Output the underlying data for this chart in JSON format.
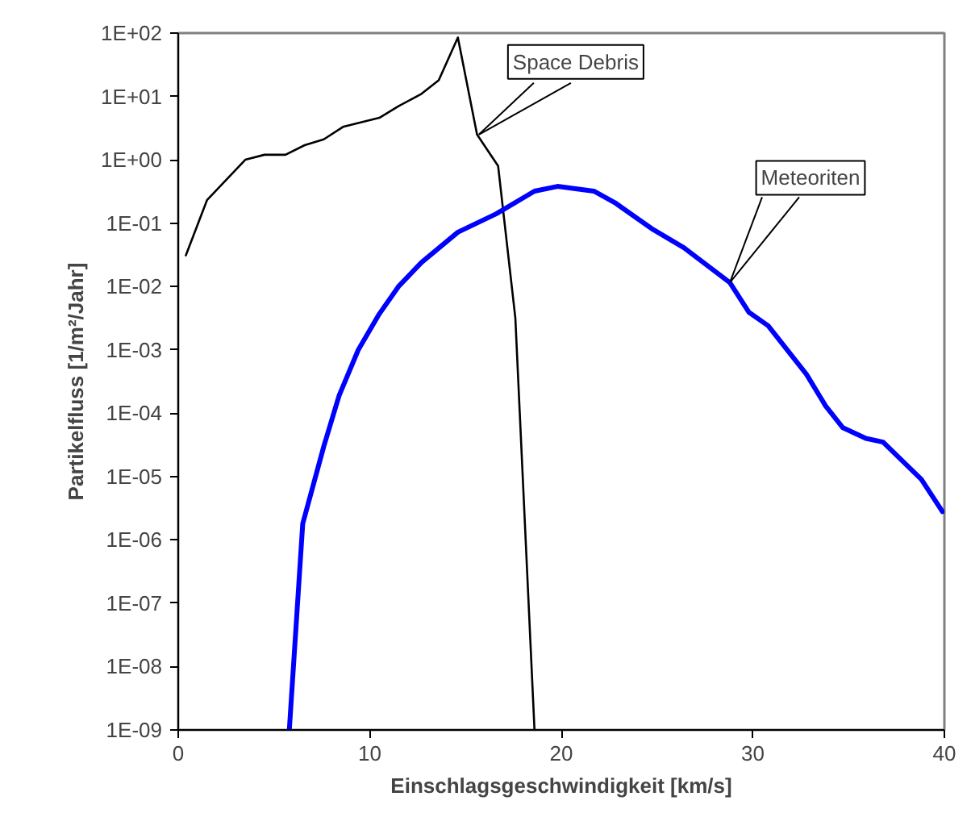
{
  "chart_data": {
    "type": "line",
    "xlabel": "Einschlagsgeschwindigkeit [km/s]",
    "ylabel": "Partikelfluss [1/m²/Jahr]",
    "log": "y",
    "xlim": [
      0,
      40
    ],
    "ylim": [
      1e-09,
      100
    ],
    "xticks": [
      0,
      10,
      20,
      30,
      40
    ],
    "yticks": [
      {
        "value": 100,
        "label": "1E+02"
      },
      {
        "value": 10,
        "label": "1E+01"
      },
      {
        "value": 1,
        "label": "1E+00"
      },
      {
        "value": 0.1,
        "label": "1E-01"
      },
      {
        "value": 0.01,
        "label": "1E-02"
      },
      {
        "value": 0.001,
        "label": "1E-03"
      },
      {
        "value": 0.0001,
        "label": "1E-04"
      },
      {
        "value": 1e-05,
        "label": "1E-05"
      },
      {
        "value": 1e-06,
        "label": "1E-06"
      },
      {
        "value": 1e-07,
        "label": "1E-07"
      },
      {
        "value": 1e-08,
        "label": "1E-08"
      },
      {
        "value": 1e-09,
        "label": "1E-09"
      }
    ],
    "grid": false,
    "line_style": "solid",
    "series": [
      {
        "color": "#000000",
        "x": [
          0.4,
          1.5,
          3.5,
          4.5,
          5.6,
          6.6,
          7.6,
          8.6,
          10.5,
          11.5,
          12.7,
          13.6,
          14.6,
          15.6,
          16.7,
          17.6,
          18.6
        ],
        "values": [
          0.031,
          0.23,
          1.0,
          1.2,
          1.2,
          1.7,
          2.1,
          3.3,
          4.6,
          7,
          11,
          18,
          85,
          2.5,
          0.8,
          0.0032,
          1e-09
        ]
      },
      {
        "color": "#0000ff",
        "x": [
          5.8,
          6.5,
          7.6,
          8.4,
          9.4,
          10.5,
          11.5,
          12.7,
          14.6,
          16.6,
          18.6,
          19.8,
          21.7,
          22.8,
          24.8,
          26.4,
          28.8,
          29.8,
          30.8,
          32.8,
          33.8,
          34.7,
          35.9,
          36.8,
          38.8,
          39.9
        ],
        "values": [
          1e-09,
          1.8e-06,
          3e-05,
          0.00019,
          0.001,
          0.0037,
          0.01,
          0.024,
          0.072,
          0.14,
          0.32,
          0.38,
          0.32,
          0.21,
          0.079,
          0.041,
          0.0115,
          0.0039,
          0.0024,
          0.00041,
          0.00013,
          5.9e-05,
          4e-05,
          3.5e-05,
          9e-06,
          2.8e-06
        ]
      }
    ],
    "annotations": [
      {
        "text": "Space Debris",
        "x": 15.7,
        "y": 2.5
      },
      {
        "text": "Meteoriten",
        "x": 28.8,
        "y": 0.0115
      }
    ]
  }
}
